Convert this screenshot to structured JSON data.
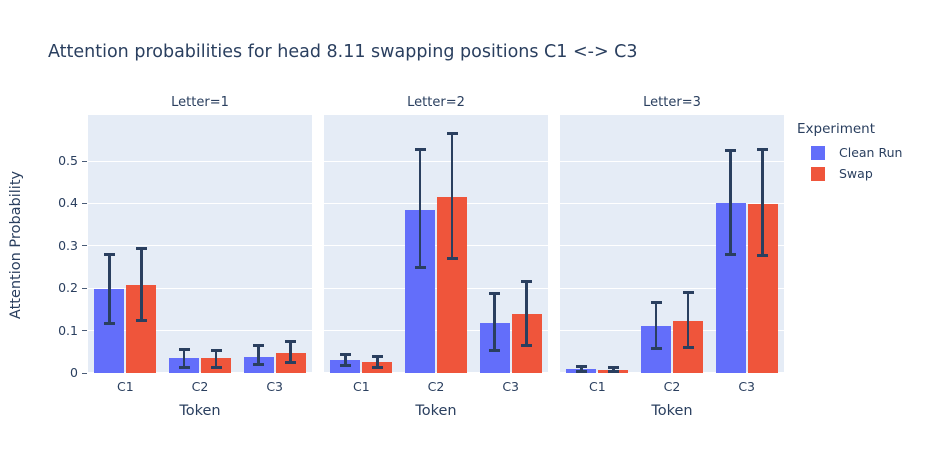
{
  "chart_data": {
    "type": "bar",
    "title": "Attention probabilities for head 8.11 swapping positions C1 <-> C3",
    "ylabel": "Attention Probability",
    "xlabel": "Token",
    "yticks": [
      0,
      0.1,
      0.2,
      0.3,
      0.4,
      0.5
    ],
    "ytick_labels": [
      "0",
      "0.1",
      "0.2",
      "0.3",
      "0.4",
      "0.5"
    ],
    "ylim": [
      0,
      0.6085
    ],
    "grid": true,
    "colors": [
      "#636EFA",
      "#EF553B"
    ],
    "error_bar_color": "#2a3f5f",
    "plot_bg": "#E5ECF6",
    "text_color": "#2a3f5f",
    "legend": {
      "title": "Experiment",
      "position": "right",
      "items": [
        {
          "label": "Clean Run",
          "color": "#636EFA"
        },
        {
          "label": "Swap",
          "color": "#EF553B"
        }
      ]
    },
    "facets": [
      {
        "label": "Letter=1",
        "xlabel": "Token",
        "categories": [
          "C1",
          "C2",
          "C3"
        ],
        "series": [
          {
            "name": "Clean Run",
            "values": [
              0.197,
              0.035,
              0.038
            ],
            "err_low": [
              0.117,
              0.014,
              0.019
            ],
            "err_high": [
              0.28,
              0.056,
              0.066
            ]
          },
          {
            "name": "Swap",
            "values": [
              0.207,
              0.035,
              0.047
            ],
            "err_low": [
              0.124,
              0.014,
              0.024
            ],
            "err_high": [
              0.293,
              0.054,
              0.075
            ]
          }
        ]
      },
      {
        "label": "Letter=2",
        "xlabel": "Token",
        "categories": [
          "C1",
          "C2",
          "C3"
        ],
        "series": [
          {
            "name": "Clean Run",
            "values": [
              0.03,
              0.385,
              0.118
            ],
            "err_low": [
              0.017,
              0.248,
              0.052
            ],
            "err_high": [
              0.043,
              0.528,
              0.188
            ]
          },
          {
            "name": "Swap",
            "values": [
              0.026,
              0.415,
              0.14
            ],
            "err_low": [
              0.014,
              0.27,
              0.064
            ],
            "err_high": [
              0.038,
              0.565,
              0.215
            ]
          }
        ]
      },
      {
        "label": "Letter=3",
        "xlabel": "Token",
        "categories": [
          "C1",
          "C2",
          "C3"
        ],
        "series": [
          {
            "name": "Clean Run",
            "values": [
              0.009,
              0.111,
              0.402
            ],
            "err_low": [
              0.004,
              0.057,
              0.28
            ],
            "err_high": [
              0.016,
              0.167,
              0.525
            ]
          },
          {
            "name": "Swap",
            "values": [
              0.008,
              0.123,
              0.398
            ],
            "err_low": [
              0.003,
              0.061,
              0.278
            ],
            "err_high": [
              0.014,
              0.189,
              0.528
            ]
          }
        ]
      }
    ]
  }
}
